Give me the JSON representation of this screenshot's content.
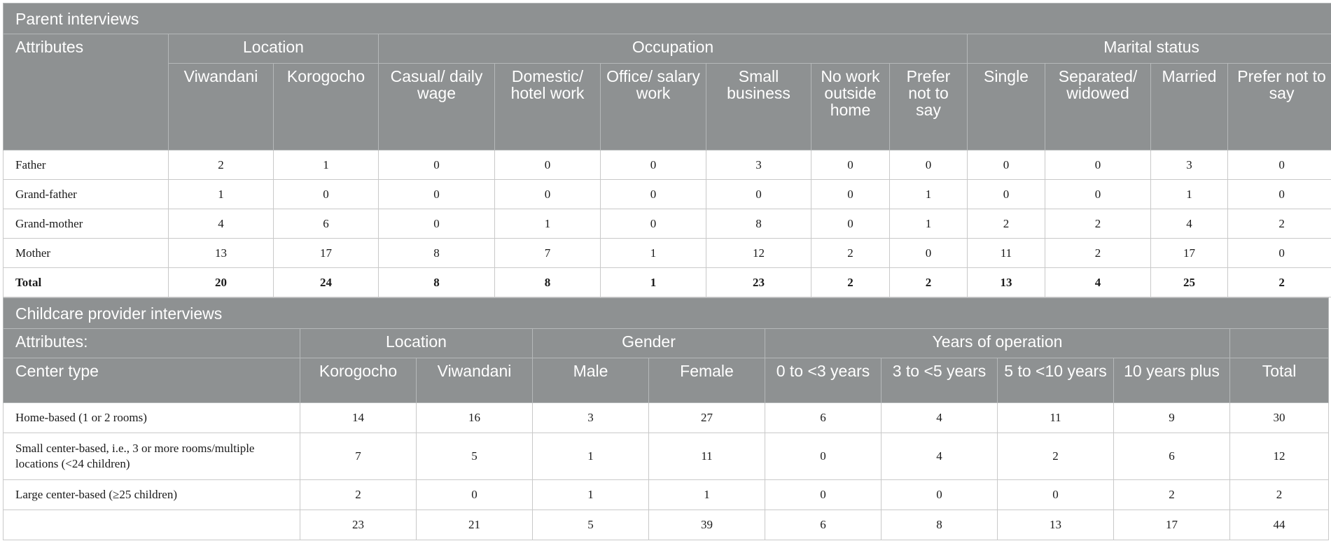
{
  "parent": {
    "section_title": "Parent interviews",
    "attributes_label": "Attributes",
    "groups": [
      "Location",
      "Occupation",
      "Marital status"
    ],
    "subheaders": [
      "Viwandani",
      "Korogocho",
      "Casual/ daily wage",
      "Domestic/ hotel work",
      "Office/ salary work",
      "Small business",
      "No work outside home",
      "Prefer not to say",
      "Single",
      "Separated/ widowed",
      "Married",
      "Prefer not to say"
    ],
    "rows": [
      {
        "label": "Father",
        "values": [
          "2",
          "1",
          "0",
          "0",
          "0",
          "3",
          "0",
          "0",
          "0",
          "0",
          "3",
          "0"
        ]
      },
      {
        "label": "Grand-father",
        "values": [
          "1",
          "0",
          "0",
          "0",
          "0",
          "0",
          "0",
          "1",
          "0",
          "0",
          "1",
          "0"
        ]
      },
      {
        "label": "Grand-mother",
        "values": [
          "4",
          "6",
          "0",
          "1",
          "0",
          "8",
          "0",
          "1",
          "2",
          "2",
          "4",
          "2"
        ]
      },
      {
        "label": "Mother",
        "values": [
          "13",
          "17",
          "8",
          "7",
          "1",
          "12",
          "2",
          "0",
          "11",
          "2",
          "17",
          "0"
        ]
      },
      {
        "label": "Total",
        "values": [
          "20",
          "24",
          "8",
          "8",
          "1",
          "23",
          "2",
          "2",
          "13",
          "4",
          "25",
          "2"
        ]
      }
    ]
  },
  "childcare": {
    "section_title": "Childcare provider interviews",
    "attributes_label": "Attributes:",
    "groups": [
      "Location",
      "Gender",
      "Years of operation"
    ],
    "center_type_label": "Center type",
    "subheaders": [
      "Korogocho",
      "Viwandani",
      "Male",
      "Female",
      "0 to <3 years",
      "3 to <5 years",
      "5 to <10 years",
      "10 years plus",
      "Total"
    ],
    "rows": [
      {
        "label": "Home-based (1 or 2 rooms)",
        "values": [
          "14",
          "16",
          "3",
          "27",
          "6",
          "4",
          "11",
          "9",
          "30"
        ]
      },
      {
        "label": "Small center-based, i.e., 3 or more rooms/multiple locations (<24 children)",
        "values": [
          "7",
          "5",
          "1",
          "11",
          "0",
          "4",
          "2",
          "6",
          "12"
        ]
      },
      {
        "label": "Large center-based (≥25 children)",
        "values": [
          "2",
          "0",
          "1",
          "1",
          "0",
          "0",
          "0",
          "2",
          "2"
        ]
      },
      {
        "label": "",
        "values": [
          "23",
          "21",
          "5",
          "39",
          "6",
          "8",
          "13",
          "17",
          "44"
        ]
      }
    ]
  }
}
